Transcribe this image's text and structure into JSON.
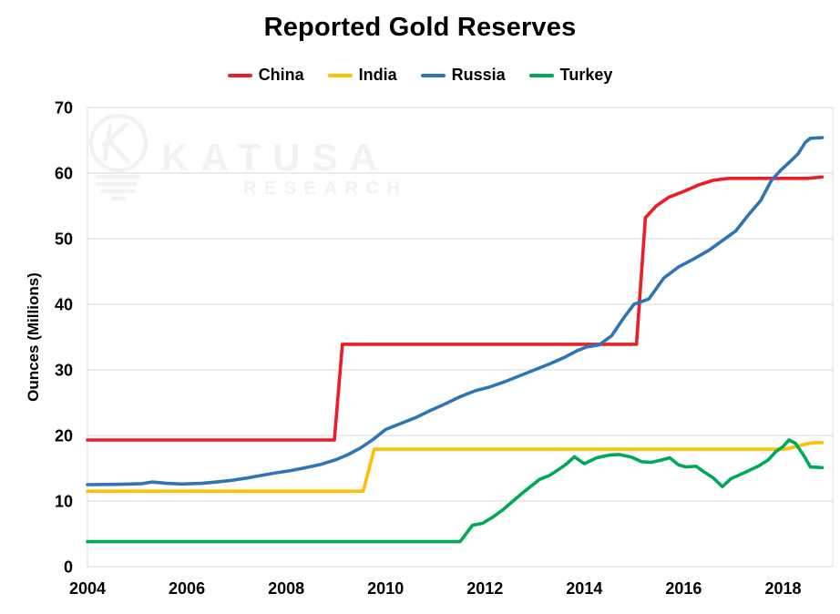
{
  "title": "Reported Gold Reserves",
  "watermark": {
    "line1": "KATUSA",
    "line2": "RESEARCH",
    "color": "#f2f2f2",
    "logo": "lightbulb-k-icon"
  },
  "colors": {
    "china": "#ee1c25",
    "india": "#ffc000",
    "russia": "#2e75b6",
    "turkey": "#00a859",
    "gridline": "#d9d9d9",
    "axis_text": "#000000",
    "background": "#ffffff"
  },
  "chart_data": {
    "type": "line",
    "title": "Reported Gold Reserves",
    "xlabel": "",
    "ylabel": "Ounces (Millions)",
    "ylim": [
      0,
      70
    ],
    "xlim": [
      2004,
      2019
    ],
    "y_ticks": [
      0,
      10,
      20,
      30,
      40,
      50,
      60,
      70
    ],
    "x_ticks": [
      2004,
      2006,
      2008,
      2010,
      2012,
      2014,
      2016,
      2018
    ],
    "grid": "horizontal",
    "legend_position": "top-center",
    "units": "million troy ounces",
    "series": [
      {
        "name": "China",
        "color": "#ee1c25",
        "points": [
          [
            2004,
            19.3
          ],
          [
            2008.97,
            19.3
          ],
          [
            2009.13,
            33.9
          ],
          [
            2015.05,
            33.9
          ],
          [
            2015.23,
            53.2
          ],
          [
            2015.45,
            55.0
          ],
          [
            2015.7,
            56.3
          ],
          [
            2016.0,
            57.2
          ],
          [
            2016.3,
            58.2
          ],
          [
            2016.6,
            58.9
          ],
          [
            2016.9,
            59.2
          ],
          [
            2018.5,
            59.2
          ],
          [
            2018.79,
            59.4
          ]
        ]
      },
      {
        "name": "India",
        "color": "#ffc000",
        "points": [
          [
            2004,
            11.5
          ],
          [
            2009.55,
            11.5
          ],
          [
            2009.77,
            17.9
          ],
          [
            2018.05,
            17.9
          ],
          [
            2018.3,
            18.4
          ],
          [
            2018.5,
            18.75
          ],
          [
            2018.65,
            18.9
          ],
          [
            2018.79,
            18.9
          ]
        ]
      },
      {
        "name": "Russia",
        "color": "#2e75b6",
        "points": [
          [
            2004,
            12.5
          ],
          [
            2004.7,
            12.55
          ],
          [
            2005.1,
            12.65
          ],
          [
            2005.3,
            12.9
          ],
          [
            2005.6,
            12.7
          ],
          [
            2005.9,
            12.6
          ],
          [
            2006.3,
            12.7
          ],
          [
            2006.6,
            12.9
          ],
          [
            2006.9,
            13.15
          ],
          [
            2007.2,
            13.5
          ],
          [
            2007.5,
            13.9
          ],
          [
            2007.8,
            14.3
          ],
          [
            2008.1,
            14.65
          ],
          [
            2008.4,
            15.1
          ],
          [
            2008.7,
            15.6
          ],
          [
            2009.0,
            16.3
          ],
          [
            2009.25,
            17.1
          ],
          [
            2009.5,
            18.1
          ],
          [
            2009.75,
            19.4
          ],
          [
            2010.0,
            20.9
          ],
          [
            2010.3,
            21.8
          ],
          [
            2010.6,
            22.7
          ],
          [
            2010.9,
            23.8
          ],
          [
            2011.2,
            24.8
          ],
          [
            2011.5,
            25.9
          ],
          [
            2011.8,
            26.8
          ],
          [
            2012.1,
            27.4
          ],
          [
            2012.4,
            28.2
          ],
          [
            2012.7,
            29.1
          ],
          [
            2013.0,
            30.0
          ],
          [
            2013.3,
            30.9
          ],
          [
            2013.6,
            31.9
          ],
          [
            2013.85,
            32.9
          ],
          [
            2014.05,
            33.5
          ],
          [
            2014.3,
            33.8
          ],
          [
            2014.55,
            35.2
          ],
          [
            2014.8,
            38.0
          ],
          [
            2015.0,
            40.0
          ],
          [
            2015.3,
            40.8
          ],
          [
            2015.6,
            44.0
          ],
          [
            2015.9,
            45.7
          ],
          [
            2016.2,
            46.9
          ],
          [
            2016.5,
            48.2
          ],
          [
            2016.8,
            49.8
          ],
          [
            2017.05,
            51.2
          ],
          [
            2017.3,
            53.6
          ],
          [
            2017.55,
            55.8
          ],
          [
            2017.76,
            58.8
          ],
          [
            2017.95,
            60.4
          ],
          [
            2018.15,
            61.8
          ],
          [
            2018.3,
            62.9
          ],
          [
            2018.45,
            64.7
          ],
          [
            2018.55,
            65.3
          ],
          [
            2018.79,
            65.4
          ]
        ]
      },
      {
        "name": "Turkey",
        "color": "#00a859",
        "points": [
          [
            2004,
            3.8
          ],
          [
            2011.5,
            3.8
          ],
          [
            2011.75,
            6.3
          ],
          [
            2011.95,
            6.6
          ],
          [
            2012.15,
            7.5
          ],
          [
            2012.35,
            8.6
          ],
          [
            2012.55,
            9.9
          ],
          [
            2012.75,
            11.2
          ],
          [
            2012.95,
            12.4
          ],
          [
            2013.1,
            13.3
          ],
          [
            2013.3,
            13.9
          ],
          [
            2013.5,
            14.9
          ],
          [
            2013.65,
            15.7
          ],
          [
            2013.8,
            16.75
          ],
          [
            2014.0,
            15.7
          ],
          [
            2014.25,
            16.6
          ],
          [
            2014.5,
            17.0
          ],
          [
            2014.7,
            17.1
          ],
          [
            2014.95,
            16.7
          ],
          [
            2015.15,
            16.0
          ],
          [
            2015.35,
            15.9
          ],
          [
            2015.55,
            16.25
          ],
          [
            2015.72,
            16.6
          ],
          [
            2015.9,
            15.5
          ],
          [
            2016.05,
            15.2
          ],
          [
            2016.25,
            15.3
          ],
          [
            2016.4,
            14.5
          ],
          [
            2016.6,
            13.5
          ],
          [
            2016.78,
            12.2
          ],
          [
            2016.95,
            13.4
          ],
          [
            2017.1,
            13.9
          ],
          [
            2017.3,
            14.6
          ],
          [
            2017.5,
            15.3
          ],
          [
            2017.7,
            16.25
          ],
          [
            2017.85,
            17.5
          ],
          [
            2018.0,
            18.3
          ],
          [
            2018.12,
            19.3
          ],
          [
            2018.25,
            18.8
          ],
          [
            2018.42,
            16.9
          ],
          [
            2018.55,
            15.2
          ],
          [
            2018.79,
            15.1
          ]
        ]
      }
    ]
  }
}
